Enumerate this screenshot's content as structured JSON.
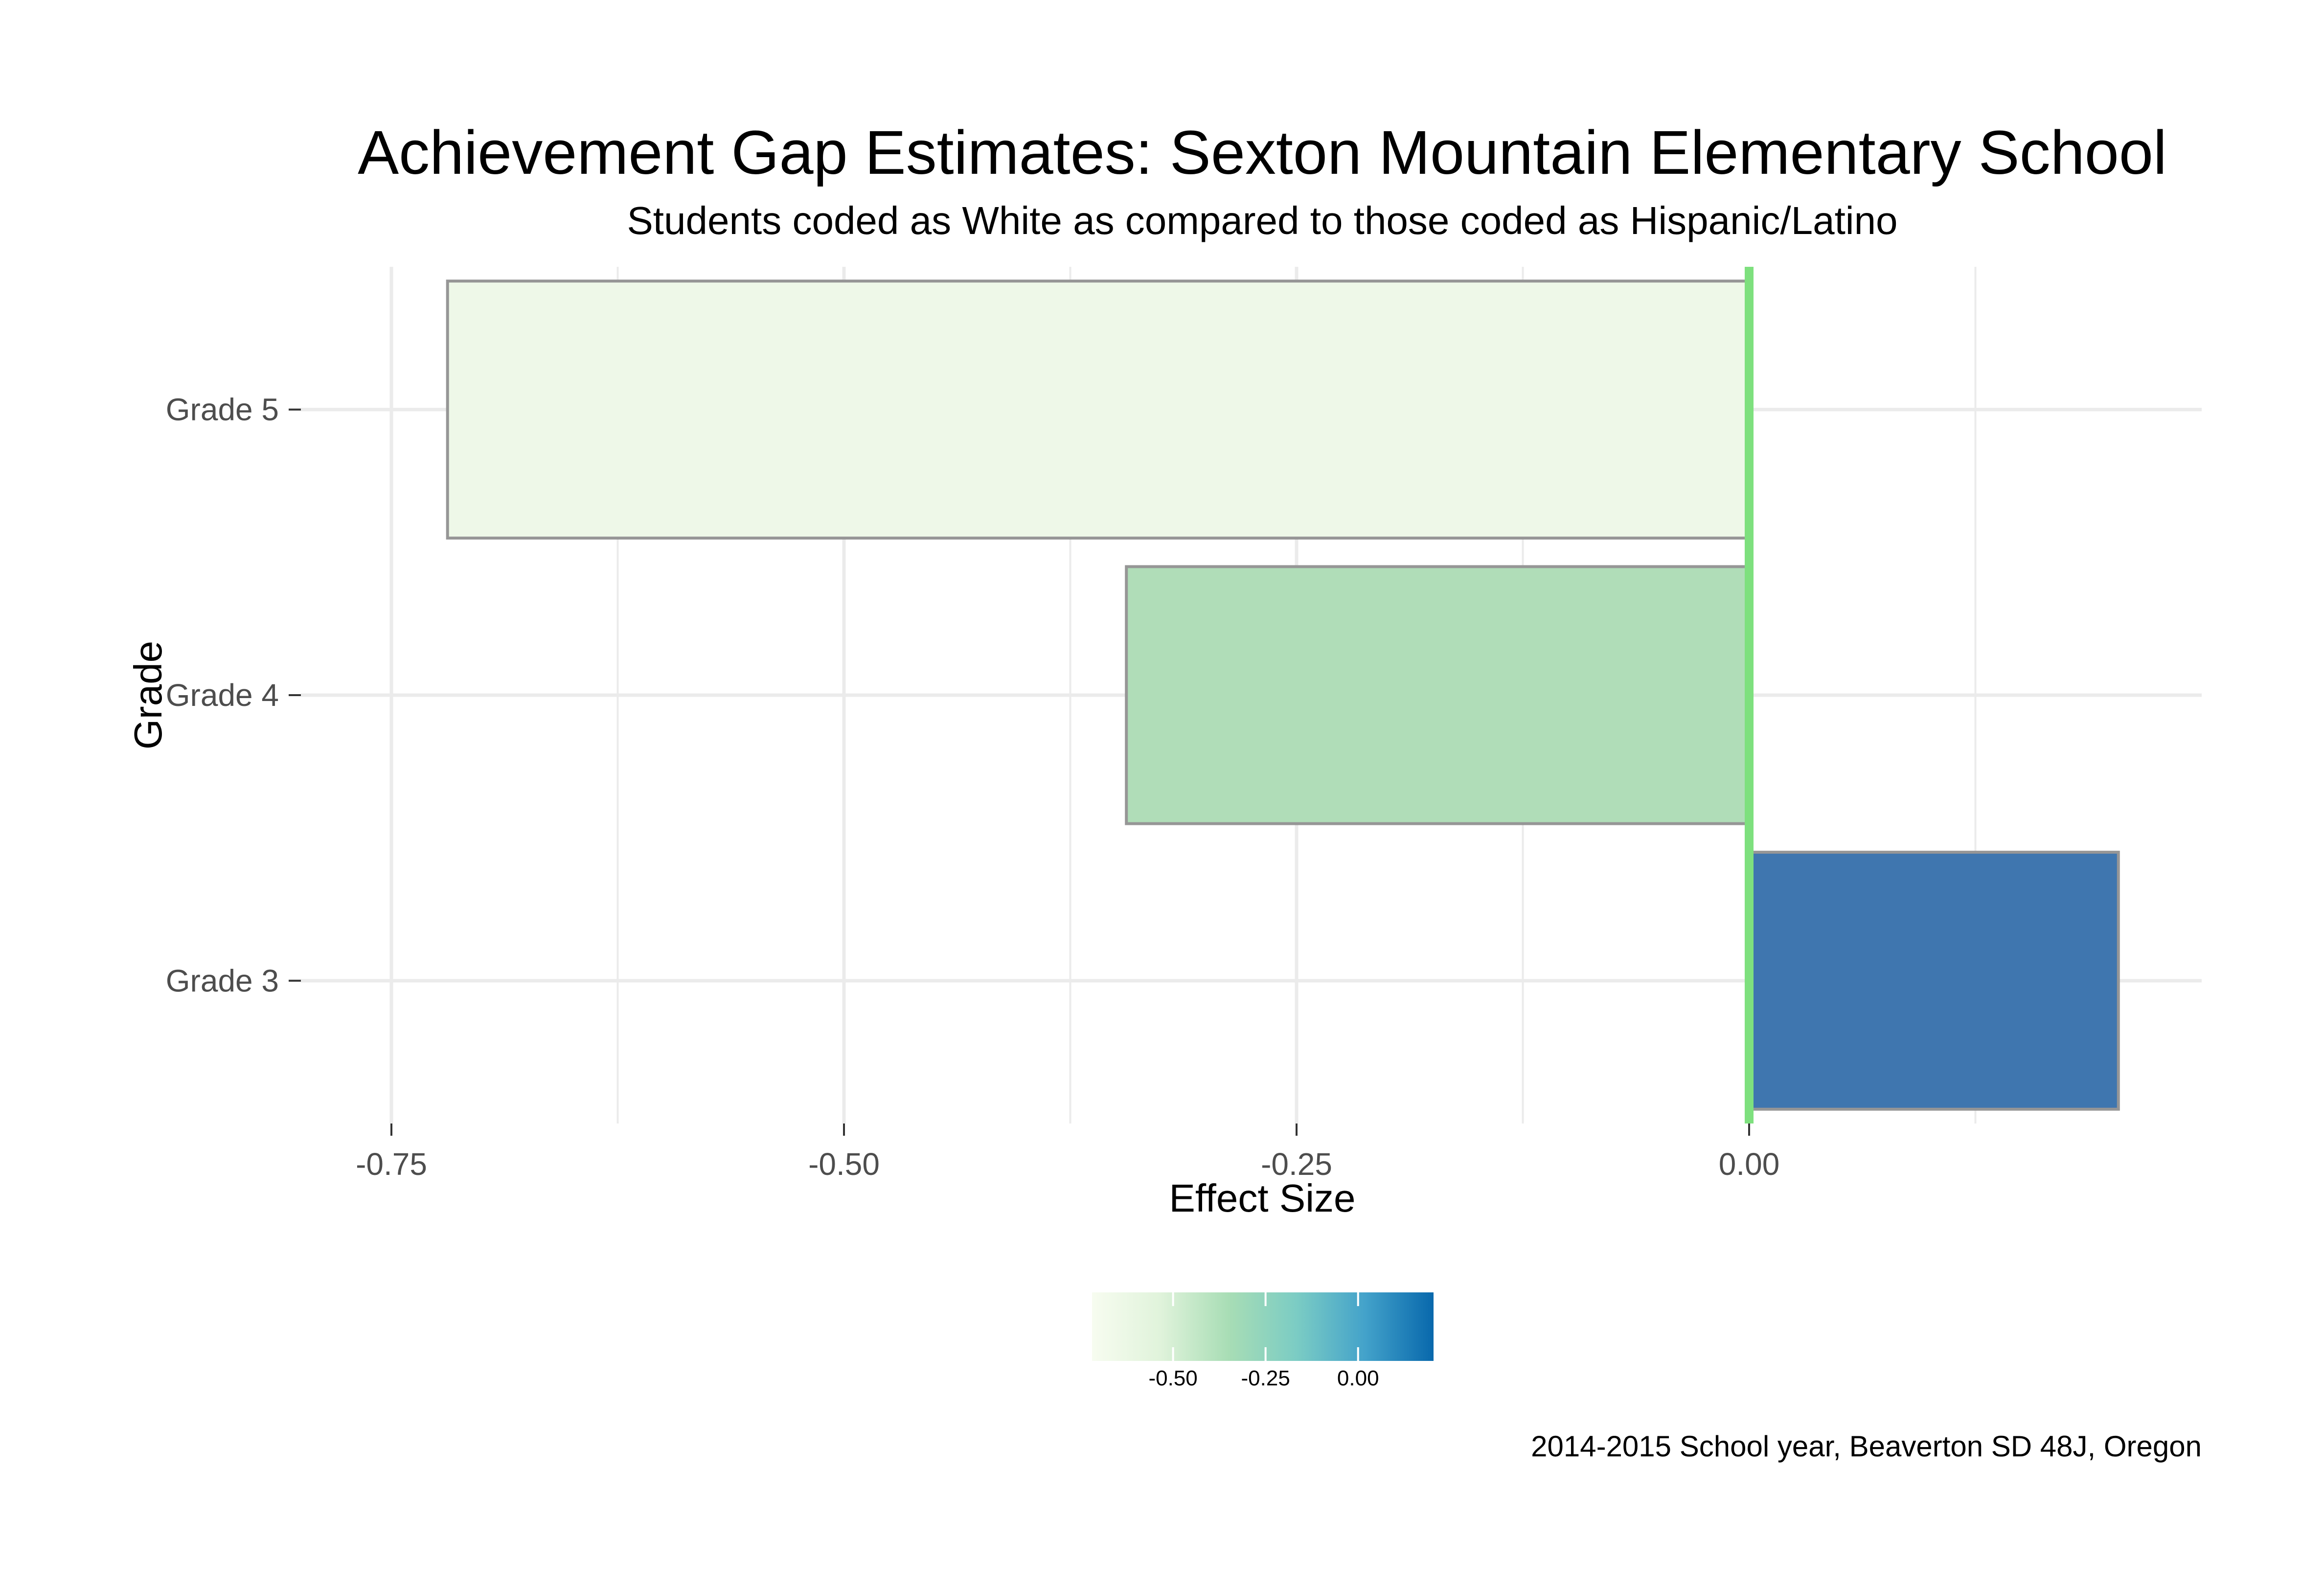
{
  "chart_data": {
    "type": "bar",
    "orientation": "horizontal",
    "title": "Achievement Gap Estimates: Sexton Mountain Elementary School",
    "subtitle": "Students coded as White as compared to those coded as Hispanic/Latino",
    "xlabel": "Effect Size",
    "ylabel": "Grade",
    "caption": "2014-2015 School year, Beaverton SD 48J, Oregon",
    "categories": [
      "Grade 3",
      "Grade 4",
      "Grade 5"
    ],
    "values": [
      0.204,
      -0.344,
      -0.719
    ],
    "xlim": [
      -0.8,
      0.25
    ],
    "x_ticks": [
      -0.75,
      -0.5,
      -0.25,
      0.0
    ],
    "x_tick_labels": [
      "-0.75",
      "-0.50",
      "-0.25",
      "0.00"
    ],
    "reference_line": {
      "x": 0,
      "color": "#7ee07e"
    },
    "grid": true,
    "legend": {
      "placement": "bottom",
      "type": "colorbar",
      "ticks": [
        -0.5,
        -0.25,
        0.0
      ],
      "tick_labels": [
        "-0.50",
        "-0.25",
        "0.00"
      ],
      "range": [
        -0.719,
        0.204
      ]
    },
    "colors": {
      "palette": [
        "#f7fcf0",
        "#e0f3db",
        "#a8ddb5",
        "#7bccc4",
        "#43a2ca",
        "#0868ac"
      ],
      "bar_fills": [
        "#3f76af",
        "#b0ddb8",
        "#eef8e8"
      ],
      "bar_outline": "#969696",
      "grid": "#ebebeb"
    }
  }
}
